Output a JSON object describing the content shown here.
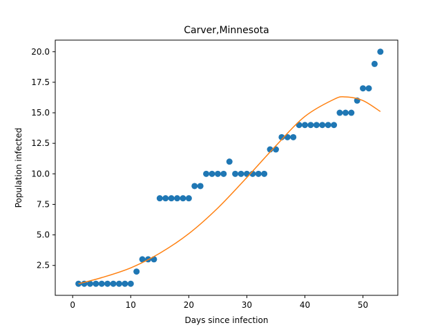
{
  "chart_data": {
    "type": "scatter",
    "title": "Carver,Minnesota",
    "xlabel": "Days since infection",
    "ylabel": "Population infected",
    "xlim": [
      -3,
      56
    ],
    "ylim": [
      0.05,
      20.95
    ],
    "grid": false,
    "x_ticks": [
      0,
      10,
      20,
      30,
      40,
      50
    ],
    "y_ticks": [
      2.5,
      5.0,
      7.5,
      10.0,
      12.5,
      15.0,
      17.5,
      20.0
    ],
    "x_tick_labels": [
      "0",
      "10",
      "20",
      "30",
      "40",
      "50"
    ],
    "y_tick_labels": [
      "2.5",
      "5.0",
      "7.5",
      "10.0",
      "12.5",
      "15.0",
      "17.5",
      "20.0"
    ],
    "series": [
      {
        "kind": "scatter",
        "color": "#1f77b4",
        "x": [
          1,
          2,
          3,
          4,
          5,
          6,
          7,
          8,
          9,
          10,
          11,
          12,
          13,
          14,
          15,
          16,
          17,
          18,
          19,
          20,
          21,
          22,
          23,
          24,
          25,
          26,
          27,
          28,
          29,
          30,
          31,
          32,
          33,
          34,
          35,
          36,
          37,
          38,
          39,
          40,
          41,
          42,
          43,
          44,
          45,
          46,
          47,
          48,
          49,
          50,
          51,
          52,
          53
        ],
        "y": [
          1,
          1,
          1,
          1,
          1,
          1,
          1,
          1,
          1,
          1,
          2,
          3,
          3,
          3,
          8,
          8,
          8,
          8,
          8,
          8,
          9,
          9,
          10,
          10,
          10,
          10,
          11,
          10,
          10,
          10,
          10,
          10,
          10,
          12,
          12,
          13,
          13,
          13,
          14,
          14,
          14,
          14,
          14,
          14,
          14,
          15,
          15,
          15,
          16,
          17,
          17,
          19,
          20
        ]
      },
      {
        "kind": "line",
        "color": "#ff7f0e",
        "x": [
          1,
          5,
          10,
          15,
          20,
          25,
          30,
          35,
          40,
          45,
          47,
          50,
          53
        ],
        "y": [
          1.0,
          1.5,
          2.3,
          3.5,
          5.1,
          7.2,
          9.7,
          12.3,
          14.7,
          16.1,
          16.3,
          16.0,
          15.1
        ]
      }
    ]
  }
}
